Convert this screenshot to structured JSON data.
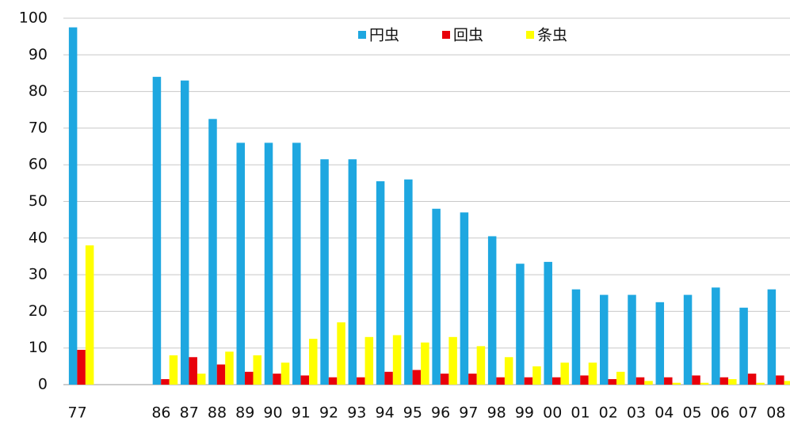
{
  "chart_data": {
    "type": "bar",
    "categories": [
      "77",
      null,
      null,
      "86",
      "87",
      "88",
      "89",
      "90",
      "91",
      "92",
      "93",
      "94",
      "95",
      "96",
      "97",
      "98",
      "99",
      "00",
      "01",
      "02",
      "03",
      "04",
      "05",
      "06",
      "07",
      "08"
    ],
    "series": [
      {
        "name": "円虫",
        "color": "#1ea7e0",
        "values": [
          97.5,
          null,
          null,
          84,
          83,
          72.5,
          66,
          66,
          66,
          61.5,
          61.5,
          55.5,
          56,
          48,
          47,
          40.5,
          33,
          33.5,
          26,
          24.5,
          24.5,
          22.5,
          24.5,
          26.5,
          21,
          26
        ]
      },
      {
        "name": "回虫",
        "color": "#e8000b",
        "values": [
          9.5,
          null,
          null,
          1.5,
          7.5,
          5.5,
          3.5,
          3,
          2.5,
          2,
          2,
          3.5,
          4,
          3,
          3,
          2,
          2,
          2,
          2.5,
          1.5,
          2,
          2,
          2.5,
          2,
          3,
          2.5
        ]
      },
      {
        "name": "条虫",
        "color": "#ffff00",
        "values": [
          38,
          null,
          null,
          8,
          3,
          9,
          8,
          6,
          12.5,
          17,
          13,
          13.5,
          11.5,
          13,
          10.5,
          7.5,
          5,
          6,
          6,
          3.5,
          1,
          0.5,
          0.5,
          1.5,
          0.5,
          1
        ]
      }
    ],
    "ylim": [
      0,
      100
    ],
    "yticks": [
      0,
      10,
      20,
      30,
      40,
      50,
      60,
      70,
      80,
      90,
      100
    ],
    "grid": true,
    "legend": "top"
  }
}
